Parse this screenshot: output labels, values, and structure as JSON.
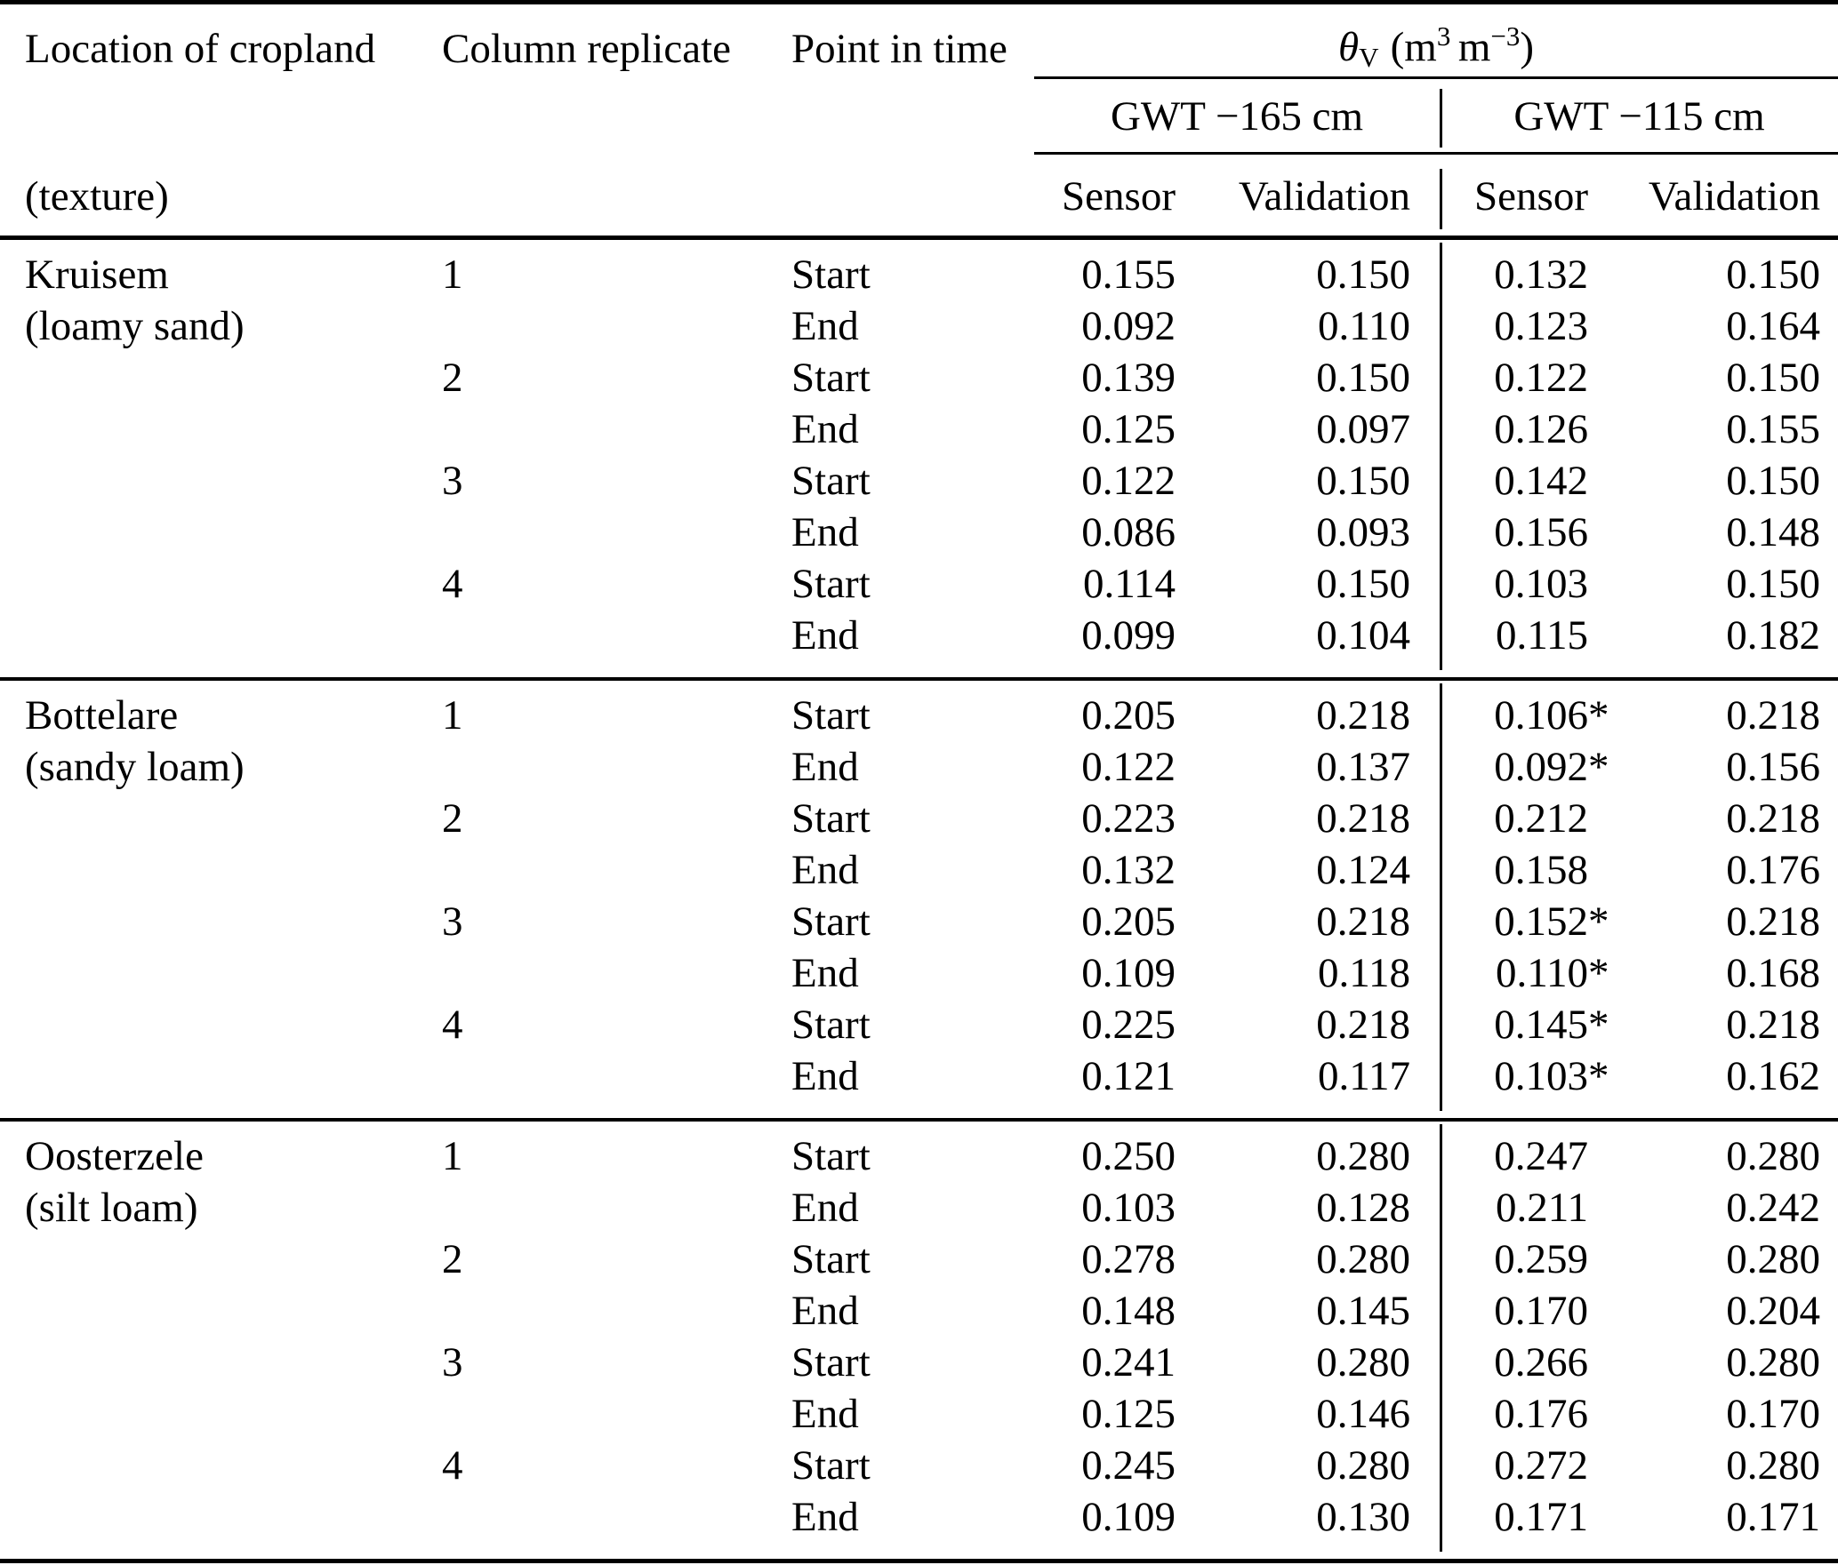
{
  "page": {
    "background": "#ffffff",
    "text_color": "#000000"
  },
  "table": {
    "header": {
      "col1_line1": "Location of cropland",
      "col1_line2": "(texture)",
      "col2": "Column replicate",
      "col3": "Point in time",
      "theta": {
        "symbol": "θ",
        "subscript": "V",
        "unit_open": "(m",
        "unit_sup1": "3",
        "unit_mid": "m",
        "unit_sup2": "−3",
        "unit_close": ")"
      },
      "gwt_left": "GWT −165 cm",
      "gwt_right": "GWT −115 cm",
      "sub_headers": [
        "Sensor",
        "Validation",
        "Sensor",
        "Validation"
      ]
    },
    "groups": [
      {
        "location": "Kruisem",
        "texture": "(loamy sand)",
        "rows": [
          {
            "replicate": "1",
            "time": "Start",
            "values": [
              "0.155",
              "0.150",
              "0.132",
              "0.150"
            ]
          },
          {
            "replicate": "",
            "time": "End",
            "values": [
              "0.092",
              "0.110",
              "0.123",
              "0.164"
            ]
          },
          {
            "replicate": "2",
            "time": "Start",
            "values": [
              "0.139",
              "0.150",
              "0.122",
              "0.150"
            ]
          },
          {
            "replicate": "",
            "time": "End",
            "values": [
              "0.125",
              "0.097",
              "0.126",
              "0.155"
            ]
          },
          {
            "replicate": "3",
            "time": "Start",
            "values": [
              "0.122",
              "0.150",
              "0.142",
              "0.150"
            ]
          },
          {
            "replicate": "",
            "time": "End",
            "values": [
              "0.086",
              "0.093",
              "0.156",
              "0.148"
            ]
          },
          {
            "replicate": "4",
            "time": "Start",
            "values": [
              "0.114",
              "0.150",
              "0.103",
              "0.150"
            ]
          },
          {
            "replicate": "",
            "time": "End",
            "values": [
              "0.099",
              "0.104",
              "0.115",
              "0.182"
            ]
          }
        ]
      },
      {
        "location": "Bottelare",
        "texture": "(sandy loam)",
        "rows": [
          {
            "replicate": "1",
            "time": "Start",
            "values": [
              "0.205",
              "0.218",
              "0.106*",
              "0.218"
            ]
          },
          {
            "replicate": "",
            "time": "End",
            "values": [
              "0.122",
              "0.137",
              "0.092*",
              "0.156"
            ]
          },
          {
            "replicate": "2",
            "time": "Start",
            "values": [
              "0.223",
              "0.218",
              "0.212",
              "0.218"
            ]
          },
          {
            "replicate": "",
            "time": "End",
            "values": [
              "0.132",
              "0.124",
              "0.158",
              "0.176"
            ]
          },
          {
            "replicate": "3",
            "time": "Start",
            "values": [
              "0.205",
              "0.218",
              "0.152*",
              "0.218"
            ]
          },
          {
            "replicate": "",
            "time": "End",
            "values": [
              "0.109",
              "0.118",
              "0.110*",
              "0.168"
            ]
          },
          {
            "replicate": "4",
            "time": "Start",
            "values": [
              "0.225",
              "0.218",
              "0.145*",
              "0.218"
            ]
          },
          {
            "replicate": "",
            "time": "End",
            "values": [
              "0.121",
              "0.117",
              "0.103*",
              "0.162"
            ]
          }
        ]
      },
      {
        "location": "Oosterzele",
        "texture": "(silt loam)",
        "rows": [
          {
            "replicate": "1",
            "time": "Start",
            "values": [
              "0.250",
              "0.280",
              "0.247",
              "0.280"
            ]
          },
          {
            "replicate": "",
            "time": "End",
            "values": [
              "0.103",
              "0.128",
              "0.211",
              "0.242"
            ]
          },
          {
            "replicate": "2",
            "time": "Start",
            "values": [
              "0.278",
              "0.280",
              "0.259",
              "0.280"
            ]
          },
          {
            "replicate": "",
            "time": "End",
            "values": [
              "0.148",
              "0.145",
              "0.170",
              "0.204"
            ]
          },
          {
            "replicate": "3",
            "time": "Start",
            "values": [
              "0.241",
              "0.280",
              "0.266",
              "0.280"
            ]
          },
          {
            "replicate": "",
            "time": "End",
            "values": [
              "0.125",
              "0.146",
              "0.176",
              "0.170"
            ]
          },
          {
            "replicate": "4",
            "time": "Start",
            "values": [
              "0.245",
              "0.280",
              "0.272",
              "0.280"
            ]
          },
          {
            "replicate": "",
            "time": "End",
            "values": [
              "0.109",
              "0.130",
              "0.171",
              "0.171"
            ]
          }
        ]
      }
    ]
  }
}
